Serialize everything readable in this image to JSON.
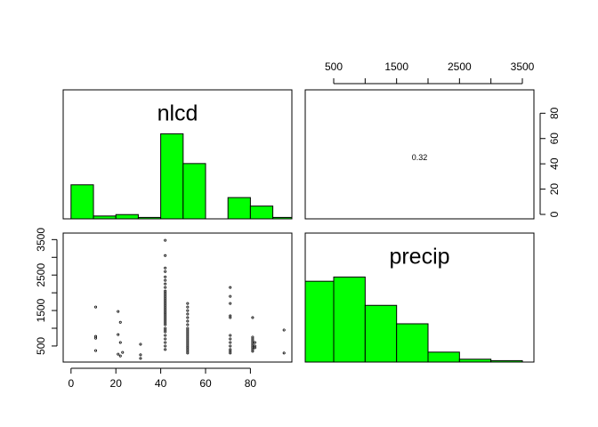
{
  "chart_data": [
    {
      "type": "histogram",
      "title": "nlcd",
      "color": "#00ff00",
      "bins": [
        0,
        10,
        20,
        30,
        40,
        50,
        60,
        70,
        80,
        90,
        100
      ],
      "counts": [
        24,
        2,
        3,
        1,
        60,
        39,
        0,
        15,
        9,
        1
      ],
      "xlim": [
        -3.5,
        98.5
      ],
      "ylim": [
        0,
        91
      ]
    },
    {
      "type": "text",
      "label": "0.32",
      "xlim": [
        47,
        3684
      ],
      "xticks": [
        500,
        1500,
        2500,
        3500
      ],
      "xminor_ticks": [
        1000,
        2000,
        3000
      ],
      "xaxis_side": "top",
      "ylim": [
        -3.5,
        98.5
      ],
      "yticks": [
        0,
        20,
        40,
        60,
        80
      ],
      "yaxis_side": "right"
    },
    {
      "type": "scatter",
      "x": [
        11,
        11,
        11,
        11,
        21,
        21,
        21,
        22,
        22,
        22,
        23,
        31,
        31,
        31,
        42,
        42,
        42,
        42,
        42,
        42,
        42,
        42,
        42,
        42,
        42,
        42,
        42,
        42,
        42,
        42,
        42,
        42,
        42,
        42,
        42,
        42,
        42,
        42,
        42,
        42,
        42,
        42,
        42,
        42,
        42,
        42,
        42,
        42,
        42,
        42,
        52,
        52,
        52,
        52,
        52,
        52,
        52,
        52,
        52,
        52,
        52,
        52,
        52,
        52,
        52,
        52,
        52,
        52,
        52,
        52,
        52,
        52,
        71,
        71,
        71,
        71,
        71,
        71,
        71,
        71,
        71,
        71,
        71,
        71,
        81,
        81,
        81,
        81,
        81,
        81,
        81,
        81,
        81,
        81,
        82,
        82,
        82,
        95,
        95
      ],
      "y": [
        1600,
        770,
        720,
        370,
        1475,
        820,
        270,
        1170,
        600,
        220,
        320,
        550,
        250,
        150,
        3480,
        3050,
        2700,
        2600,
        2450,
        2350,
        2250,
        2150,
        2050,
        2000,
        1950,
        1900,
        1850,
        1800,
        1750,
        1700,
        1650,
        1600,
        1550,
        1500,
        1450,
        1400,
        1350,
        1300,
        1250,
        1200,
        1150,
        1100,
        1000,
        950,
        900,
        800,
        700,
        600,
        500,
        400,
        1700,
        1600,
        1500,
        1400,
        1300,
        1200,
        1100,
        1000,
        950,
        900,
        850,
        800,
        750,
        700,
        650,
        600,
        550,
        500,
        450,
        400,
        350,
        300,
        2150,
        1900,
        1700,
        1350,
        1300,
        800,
        700,
        600,
        500,
        400,
        350,
        300,
        1300,
        750,
        700,
        650,
        600,
        550,
        500,
        450,
        400,
        350,
        600,
        500,
        450,
        950,
        300
      ],
      "xlim": [
        -3.5,
        98.5
      ],
      "xticks": [
        0,
        20,
        40,
        60,
        80
      ],
      "xaxis_side": "bottom",
      "ylim": [
        47,
        3684
      ],
      "yticks": [
        500,
        1500,
        2500,
        3500
      ],
      "yminor_ticks": [
        1000,
        2000,
        3000
      ],
      "yaxis_side": "left"
    },
    {
      "type": "histogram",
      "title": "precip",
      "color": "#00ff00",
      "bins": [
        0,
        500,
        1000,
        1500,
        2000,
        2500,
        3000,
        3500
      ],
      "counts": [
        57,
        60,
        40,
        27,
        7,
        2,
        1
      ],
      "xlim": [
        47,
        3684
      ],
      "ylim": [
        0,
        91
      ]
    }
  ]
}
